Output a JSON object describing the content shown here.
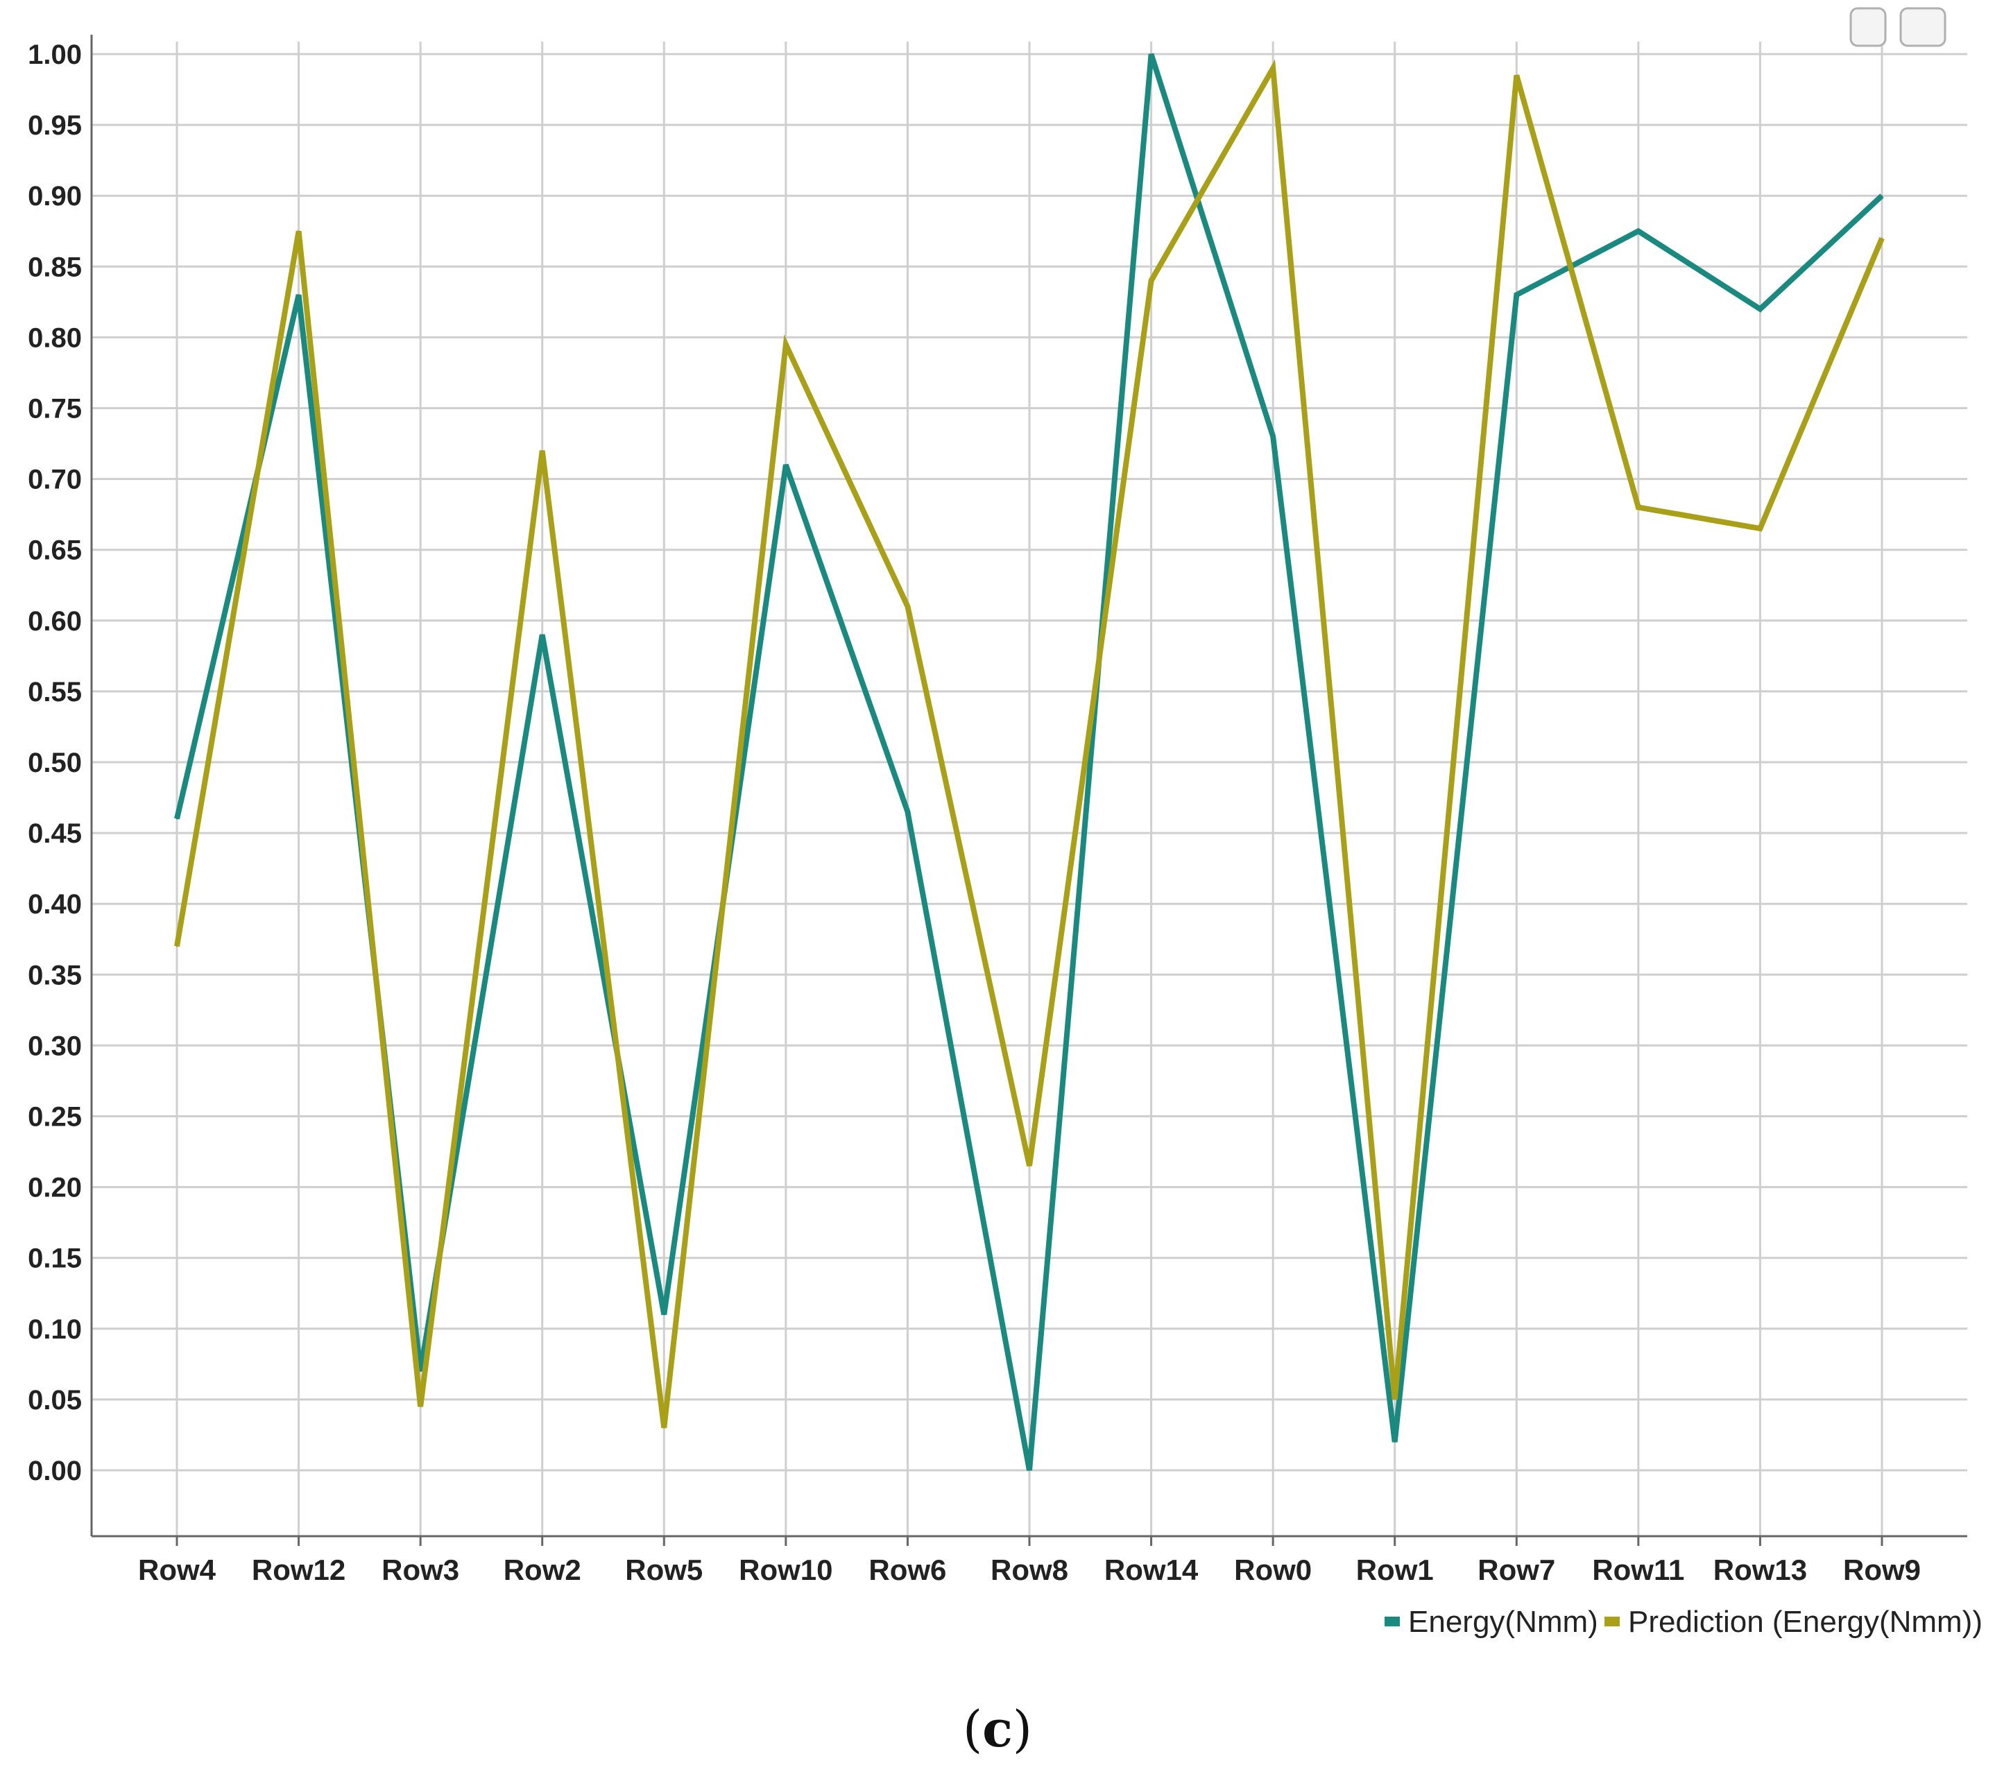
{
  "chart_data": {
    "type": "line",
    "categories": [
      "Row4",
      "Row12",
      "Row3",
      "Row2",
      "Row5",
      "Row10",
      "Row6",
      "Row8",
      "Row14",
      "Row0",
      "Row1",
      "Row7",
      "Row11",
      "Row13",
      "Row9"
    ],
    "series": [
      {
        "name": "Energy(Nmm)",
        "color": "#1a8a80",
        "values": [
          0.46,
          0.83,
          0.07,
          0.59,
          0.11,
          0.71,
          0.465,
          0.0,
          1.0,
          0.73,
          0.02,
          0.83,
          0.875,
          0.82,
          0.9
        ]
      },
      {
        "name": "Prediction (Energy(Nmm))",
        "color": "#a9a018",
        "values": [
          0.37,
          0.875,
          0.045,
          0.72,
          0.03,
          0.795,
          0.61,
          0.215,
          0.84,
          0.99,
          0.05,
          0.985,
          0.68,
          0.665,
          0.87
        ]
      }
    ],
    "yticks": [
      "0.00",
      "0.05",
      "0.10",
      "0.15",
      "0.20",
      "0.25",
      "0.30",
      "0.35",
      "0.40",
      "0.45",
      "0.50",
      "0.55",
      "0.60",
      "0.65",
      "0.70",
      "0.75",
      "0.80",
      "0.85",
      "0.90",
      "0.95",
      "1.00"
    ],
    "ylim": [
      0,
      1
    ],
    "grid": true,
    "legend_position": "bottom-right",
    "title": "",
    "xlabel": "",
    "ylabel": ""
  },
  "caption": {
    "open": "(",
    "letter": "c",
    "close": ")"
  }
}
